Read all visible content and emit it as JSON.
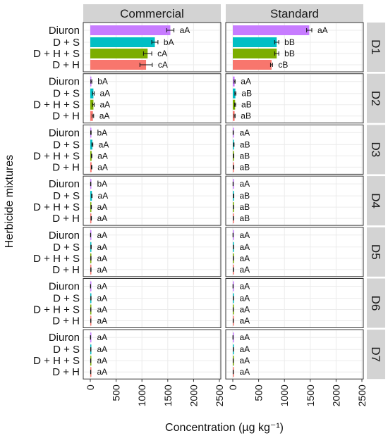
{
  "chart_data": {
    "type": "bar",
    "orientation": "horizontal",
    "xlabel": "Concentration (µg kg⁻¹)",
    "ylabel": "Herbicide mixtures",
    "xlim": [
      0,
      2500
    ],
    "xticks": [
      "0",
      "500",
      "1000",
      "1500",
      "2000",
      "2500"
    ],
    "facet_columns": [
      "Commercial",
      "Standard"
    ],
    "facet_rows": [
      "D1",
      "D2",
      "D3",
      "D4",
      "D5",
      "D6",
      "D7"
    ],
    "categories": [
      "Diuron",
      "D + S",
      "D + H + S",
      "D + H"
    ],
    "colors": {
      "Diuron": "#c77cff",
      "D + S": "#00bfc4",
      "D + H + S": "#7cae00",
      "D + H": "#f8766d"
    },
    "grid": true,
    "legend": "none",
    "panels": [
      {
        "row": "D1",
        "column": "Commercial",
        "values": [
          1550,
          1250,
          1110,
          1080
        ],
        "errors": [
          70,
          60,
          80,
          120
        ],
        "labels": [
          "aA",
          "bA",
          "cA",
          "cA"
        ]
      },
      {
        "row": "D1",
        "column": "Standard",
        "values": [
          1480,
          850,
          850,
          750
        ],
        "errors": [
          50,
          40,
          40,
          20
        ],
        "labels": [
          "aA",
          "bB",
          "bB",
          "cB"
        ]
      },
      {
        "row": "D2",
        "column": "Commercial",
        "values": [
          20,
          60,
          60,
          50
        ],
        "errors": [
          10,
          15,
          15,
          15
        ],
        "labels": [
          "bA",
          "aA",
          "aA",
          "aA"
        ]
      },
      {
        "row": "D2",
        "column": "Standard",
        "values": [
          35,
          50,
          45,
          35
        ],
        "errors": [
          10,
          10,
          10,
          10
        ],
        "labels": [
          "aA",
          "aB",
          "aB",
          "aB"
        ]
      },
      {
        "row": "D3",
        "column": "Commercial",
        "values": [
          12,
          40,
          25,
          25
        ],
        "errors": [
          5,
          10,
          5,
          5
        ],
        "labels": [
          "bA",
          "aA",
          "aA",
          "aA"
        ]
      },
      {
        "row": "D3",
        "column": "Standard",
        "values": [
          8,
          20,
          15,
          15
        ],
        "errors": [
          3,
          5,
          4,
          4
        ],
        "labels": [
          "aA",
          "aB",
          "aB",
          "aB"
        ]
      },
      {
        "row": "D4",
        "column": "Commercial",
        "values": [
          8,
          30,
          18,
          18
        ],
        "errors": [
          3,
          5,
          4,
          4
        ],
        "labels": [
          "bA",
          "aA",
          "aA",
          "aA"
        ]
      },
      {
        "row": "D4",
        "column": "Standard",
        "values": [
          6,
          15,
          12,
          10
        ],
        "errors": [
          2,
          4,
          3,
          3
        ],
        "labels": [
          "aA",
          "aB",
          "aB",
          "aB"
        ]
      },
      {
        "row": "D5",
        "column": "Commercial",
        "values": [
          6,
          15,
          12,
          12
        ],
        "errors": [
          2,
          4,
          3,
          3
        ],
        "labels": [
          "aA",
          "aA",
          "aA",
          "aA"
        ]
      },
      {
        "row": "D5",
        "column": "Standard",
        "values": [
          5,
          12,
          10,
          10
        ],
        "errors": [
          2,
          3,
          3,
          3
        ],
        "labels": [
          "aA",
          "aA",
          "aA",
          "aA"
        ]
      },
      {
        "row": "D6",
        "column": "Commercial",
        "values": [
          5,
          12,
          10,
          10
        ],
        "errors": [
          2,
          3,
          2,
          2
        ],
        "labels": [
          "aA",
          "aA",
          "aA",
          "aA"
        ]
      },
      {
        "row": "D6",
        "column": "Standard",
        "values": [
          5,
          10,
          8,
          8
        ],
        "errors": [
          2,
          3,
          2,
          2
        ],
        "labels": [
          "aA",
          "aA",
          "aA",
          "aA"
        ]
      },
      {
        "row": "D7",
        "column": "Commercial",
        "values": [
          4,
          10,
          8,
          8
        ],
        "errors": [
          2,
          2,
          2,
          2
        ],
        "labels": [
          "aA",
          "aA",
          "aA",
          "aA"
        ]
      },
      {
        "row": "D7",
        "column": "Standard",
        "values": [
          4,
          10,
          8,
          8
        ],
        "errors": [
          2,
          3,
          2,
          2
        ],
        "labels": [
          "aA",
          "aA",
          "aA",
          "aA"
        ]
      }
    ]
  }
}
